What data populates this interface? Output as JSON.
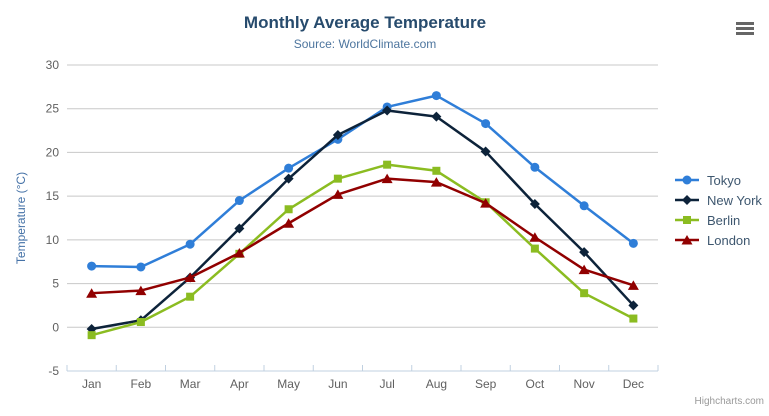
{
  "chart_data": {
    "type": "line",
    "title": "Monthly Average Temperature",
    "subtitle": "Source: WorldClimate.com",
    "categories": [
      "Jan",
      "Feb",
      "Mar",
      "Apr",
      "May",
      "Jun",
      "Jul",
      "Aug",
      "Sep",
      "Oct",
      "Nov",
      "Dec"
    ],
    "series": [
      {
        "name": "Tokyo",
        "color": "#2f7ed8",
        "marker": "circle",
        "values": [
          7.0,
          6.9,
          9.5,
          14.5,
          18.2,
          21.5,
          25.2,
          26.5,
          23.3,
          18.3,
          13.9,
          9.6
        ]
      },
      {
        "name": "New York",
        "color": "#0d233a",
        "marker": "diamond",
        "values": [
          -0.2,
          0.8,
          5.7,
          11.3,
          17.0,
          22.0,
          24.8,
          24.1,
          20.1,
          14.1,
          8.6,
          2.5
        ]
      },
      {
        "name": "Berlin",
        "color": "#8bbc21",
        "marker": "square",
        "values": [
          -0.9,
          0.6,
          3.5,
          8.4,
          13.5,
          17.0,
          18.6,
          17.9,
          14.3,
          9.0,
          3.9,
          1.0
        ]
      },
      {
        "name": "London",
        "color": "#910000",
        "marker": "triangle",
        "values": [
          3.9,
          4.2,
          5.7,
          8.5,
          11.9,
          15.2,
          17.0,
          16.6,
          14.2,
          10.3,
          6.6,
          4.8
        ]
      }
    ],
    "xlabel": "",
    "ylabel": "Temperature (°C)",
    "ylim": [
      -5,
      30
    ],
    "ytick_step": 5,
    "grid": true,
    "legend_position": "right"
  },
  "credits": {
    "label": "Highcharts.com"
  },
  "colors": {
    "grid": "#C8C8C8",
    "axis_line": "#C0D0E0",
    "tick": "#C0D0E0",
    "axis_label": "#606060",
    "title": "#274b6d",
    "subtitle": "#4d759e",
    "axis_title": "#4572A7",
    "legend_text": "#3E576F",
    "credits": "#999999",
    "menu_icon": "#666666",
    "background": "#FFFFFF"
  }
}
